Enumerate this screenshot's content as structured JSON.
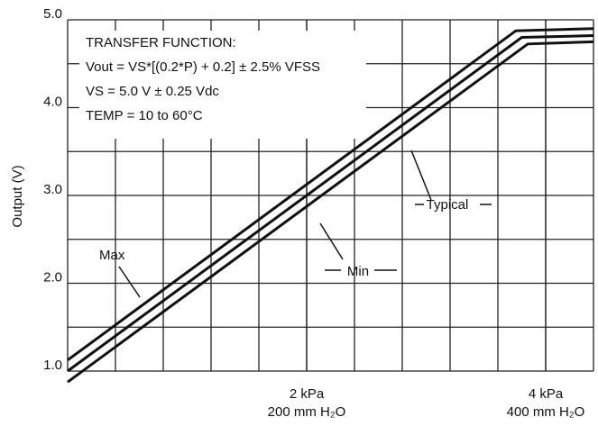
{
  "chart_data": {
    "type": "line",
    "y_label": "Output (V)",
    "annotations": [
      "TRANSFER FUNCTION:",
      "Vout = VS*[(0.2*P) + 0.2] ± 2.5% VFSS",
      "VS = 5.0 V ± 0.25 Vdc",
      "TEMP = 10 to 60°C"
    ],
    "series": [
      {
        "name": "Max",
        "color": "#111111",
        "x": [
          0,
          3.75,
          4.4
        ],
        "values": [
          1.125,
          4.875,
          4.9
        ]
      },
      {
        "name": "Typical",
        "color": "#111111",
        "x": [
          0,
          3.8,
          4.4
        ],
        "values": [
          1.0,
          4.8,
          4.82
        ]
      },
      {
        "name": "Min",
        "color": "#111111",
        "x": [
          0,
          3.85,
          4.4
        ],
        "values": [
          0.875,
          4.725,
          4.75
        ]
      }
    ],
    "xlim": [
      0,
      4.4
    ],
    "xticks": [
      {
        "value": 2,
        "label": "2 kPa"
      },
      {
        "value": 4,
        "label": "4 kPa"
      }
    ],
    "xtick_sublabels": [
      "200 mm H₂O",
      "400 mm H₂O"
    ],
    "xgrid": [
      0.4,
      0.8,
      1.2,
      1.6,
      2,
      2.4,
      2.8,
      3.2,
      3.6,
      4,
      4.4
    ],
    "ylim": [
      1,
      5
    ],
    "yticks": [
      {
        "value": 1,
        "label": "1.0"
      },
      {
        "value": 2,
        "label": "2.0"
      },
      {
        "value": 3,
        "label": "3.0"
      },
      {
        "value": 4,
        "label": "4.0"
      },
      {
        "value": 5,
        "label": "5.0"
      }
    ],
    "ygrid": [
      1.5,
      2.5,
      3.5,
      4.5
    ],
    "grid": true
  }
}
